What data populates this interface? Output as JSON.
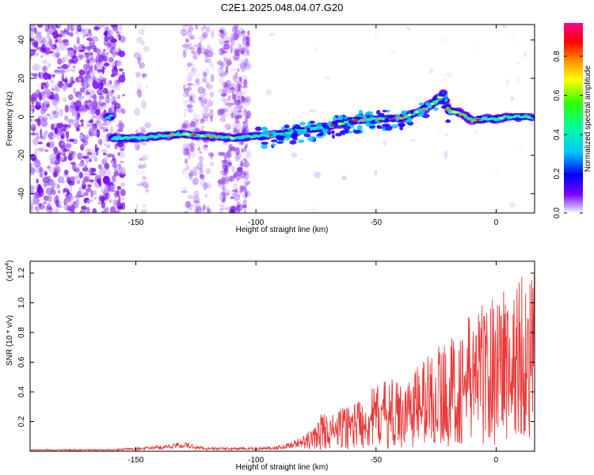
{
  "title": "C2E1.2025.048.04.07.G20",
  "chart_data": [
    {
      "type": "heatmap",
      "xlabel": "Height of straight line (km)",
      "ylabel": "Frequency (Hz)",
      "xlim": [
        -194,
        16
      ],
      "ylim": [
        -50,
        48
      ],
      "xticks": [
        -150,
        -100,
        -50,
        0
      ],
      "yticks": [
        -40,
        -20,
        0,
        20,
        40
      ],
      "colorbar": {
        "label": "Normalized spectral amplitude",
        "range": [
          0.0,
          0.97
        ],
        "ticks": [
          "0.0",
          "0.2",
          "0.4",
          "0.6",
          "0.8"
        ]
      },
      "ridge": {
        "x": [
          -160,
          -150,
          -140,
          -130,
          -120,
          -110,
          -100,
          -90,
          -80,
          -70,
          -60,
          -50,
          -40,
          -30,
          -25,
          -22,
          -20,
          -15,
          -10,
          -5,
          0,
          5,
          10,
          15
        ],
        "y": [
          -11,
          -11,
          -10,
          -9,
          -10,
          -11,
          -10,
          -9,
          -7,
          -5,
          -2,
          -1,
          -1,
          4,
          8,
          12,
          3,
          2,
          -2,
          -1,
          -1,
          0,
          0,
          0
        ]
      }
    },
    {
      "type": "line",
      "xlabel": "Height of straight line (km)",
      "ylabel": "SNR (10 * v/v)",
      "yscale_label": "(x10",
      "yscale_exp": "4",
      "xlim": [
        -194,
        16
      ],
      "ylim": [
        0,
        1.28
      ],
      "xticks": [
        -150,
        -100,
        -50,
        0
      ],
      "yticks": [
        "0.2",
        "0.4",
        "0.6",
        "0.8",
        "1.0",
        "1.2"
      ],
      "series": [
        {
          "color": "#e83a3a",
          "x": [
            -194,
            -180,
            -170,
            -160,
            -150,
            -140,
            -135,
            -130,
            -125,
            -120,
            -110,
            -100,
            -90,
            -85,
            -80,
            -75,
            -72,
            -70,
            -65,
            -60,
            -55,
            -50,
            -45,
            -40,
            -35,
            -30,
            -25,
            -20,
            -15,
            -12,
            -10,
            -8,
            -5,
            -3,
            0,
            3,
            5,
            8,
            10,
            12,
            14,
            16
          ],
          "y": [
            0.01,
            0.01,
            0.01,
            0.01,
            0.02,
            0.03,
            0.04,
            0.05,
            0.03,
            0.02,
            0.02,
            0.02,
            0.03,
            0.05,
            0.08,
            0.14,
            0.22,
            0.18,
            0.22,
            0.26,
            0.3,
            0.34,
            0.38,
            0.36,
            0.42,
            0.5,
            0.55,
            0.58,
            0.62,
            0.68,
            0.78,
            0.72,
            0.82,
            0.75,
            0.88,
            0.92,
            0.78,
            0.85,
            1.0,
            0.9,
            0.95,
            0.92
          ]
        }
      ]
    }
  ]
}
